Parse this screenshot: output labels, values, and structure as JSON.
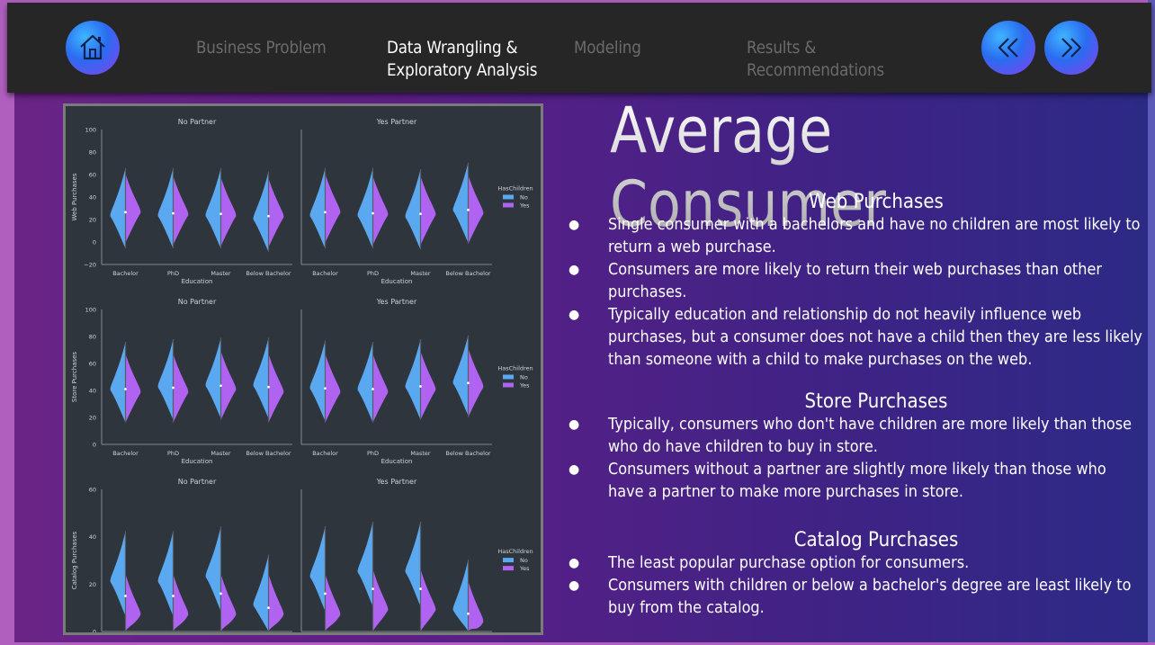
{
  "nav": {
    "home_icon": "home-icon",
    "items": [
      {
        "label": "Business Problem"
      },
      {
        "label": "Data Wrangling &",
        "label2": "Exploratory Analysis"
      },
      {
        "label": "Modeling"
      },
      {
        "label": "Results &",
        "label2": "Recommendations"
      }
    ],
    "prev_icon": "double-chevron-left-icon",
    "next_icon": "double-chevron-right-icon",
    "active_index": 1
  },
  "title": "Average Consumer",
  "sections": [
    {
      "heading": "Web Purchases",
      "bullets": [
        "Single consumer with a bachelors and have no children are most likely to return a web purchase.",
        "Consumers are more likely to return their web purchases than other purchases.",
        "Typically education and relationship do not heavily influence web purchases, but a consumer does not have a child then they are less likely than someone with a child to make purchases on the web."
      ]
    },
    {
      "heading": "Store Purchases",
      "bullets": [
        "Typically, consumers who don't have children are more likely than those who do have children to buy in store.",
        "Consumers without a partner are slightly more likely than those who have a partner to make more purchases in store."
      ]
    },
    {
      "heading": "Catalog Purchases",
      "bullets": [
        "The least popular purchase option for consumers.",
        "Consumers with children or below a bachelor's degree are least likely to buy from the catalog."
      ]
    }
  ],
  "bullet_char": "●",
  "chart_data": {
    "type": "violin",
    "x_categories": [
      "Bachelor",
      "PhD",
      "Master",
      "Below Bachelor"
    ],
    "xlabel": "Education",
    "legend": {
      "title": "HasChildren",
      "entries": [
        {
          "label": "No",
          "color": "#5aa8f0"
        },
        {
          "label": "Yes",
          "color": "#b063f0"
        }
      ]
    },
    "rows": [
      {
        "ylabel": "Web Purchases",
        "ylim": [
          -20,
          100
        ],
        "yticks": [
          "100",
          "80",
          "60",
          "40",
          "20",
          "0",
          "−20"
        ],
        "panels": [
          {
            "title": "No Partner",
            "medians_no": [
              25,
              25,
              25,
              22
            ],
            "medians_yes": [
              28,
              26,
              25,
              24
            ]
          },
          {
            "title": "Yes Partner",
            "medians_no": [
              25,
              25,
              24,
              30
            ],
            "medians_yes": [
              28,
              26,
              26,
              27
            ]
          }
        ]
      },
      {
        "ylabel": "Store Purchases",
        "ylim": [
          0,
          100
        ],
        "yticks": [
          "100",
          "80",
          "60",
          "40",
          "20",
          "0"
        ],
        "panels": [
          {
            "title": "No Partner",
            "medians_no": [
              42,
              44,
              45,
              45
            ],
            "medians_yes": [
              40,
              40,
              42,
              40
            ]
          },
          {
            "title": "Yes Partner",
            "medians_no": [
              43,
              42,
              44,
              47
            ],
            "medians_yes": [
              40,
              40,
              42,
              44
            ]
          }
        ]
      },
      {
        "ylabel": "Catalog Purchases",
        "ylim": [
          0,
          60
        ],
        "yticks": [
          "60",
          "40",
          "20",
          "0"
        ],
        "panels": [
          {
            "title": "No Partner",
            "medians_no": [
              22,
              22,
              24,
              12
            ],
            "medians_yes": [
              8,
              8,
              8,
              8
            ]
          },
          {
            "title": "Yes Partner",
            "medians_no": [
              24,
              26,
              26,
              10
            ],
            "medians_yes": [
              8,
              10,
              10,
              5
            ]
          }
        ]
      }
    ]
  }
}
